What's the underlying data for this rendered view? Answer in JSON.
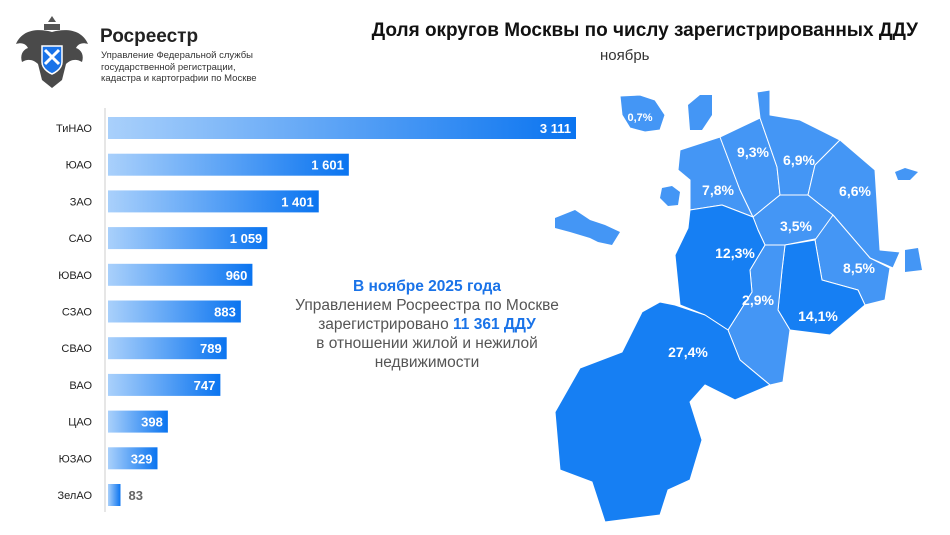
{
  "header": {
    "brand": "Росреестр",
    "brand_subtitle": "Управление Федеральной службы государственной регистрации, кадастра и картографии по Москве",
    "title": "Доля округов Москвы по числу зарегистрированных ДДУ",
    "subtitle": "ноябрь"
  },
  "info": {
    "line1": "В ноябре 2025 года",
    "line2": "Управлением Росреестра по Москве",
    "line3_prefix": "зарегистрировано ",
    "line3_value": "11 361 ДДУ",
    "line4": "в отношении жилой и нежилой",
    "line5": "недвижимости"
  },
  "colors": {
    "bar_start": "#a9d0fb",
    "bar_end": "#0a74f0",
    "map_light": "#4496f5",
    "map_dark": "#167ff3",
    "accent": "#1a73e8"
  },
  "chart_data": [
    {
      "type": "bar",
      "orientation": "horizontal",
      "categories": [
        "ТиНАО",
        "ЮАО",
        "ЗАО",
        "САО",
        "ЮВАО",
        "СЗАО",
        "СВАО",
        "ВАО",
        "ЦАО",
        "ЮЗАО",
        "ЗелАО"
      ],
      "values": [
        3111,
        1601,
        1401,
        1059,
        960,
        883,
        789,
        747,
        398,
        329,
        83
      ],
      "value_labels": [
        "3 111",
        "1 601",
        "1 401",
        "1 059",
        "960",
        "883",
        "789",
        "747",
        "398",
        "329",
        "83"
      ]
    },
    {
      "type": "choropleth",
      "regions": [
        {
          "name": "ЗелАО",
          "label": "0,7%",
          "shade": "light"
        },
        {
          "name": "СЗАО",
          "label": "7,8%",
          "shade": "light"
        },
        {
          "name": "САО",
          "label": "9,3%",
          "shade": "light"
        },
        {
          "name": "СВАО",
          "label": "6,9%",
          "shade": "light"
        },
        {
          "name": "ВАО",
          "label": "6,6%",
          "shade": "light"
        },
        {
          "name": "ЦАО",
          "label": "3,5%",
          "shade": "light"
        },
        {
          "name": "ЮВАО",
          "label": "8,5%",
          "shade": "light"
        },
        {
          "name": "ЮАО",
          "label": "14,1%",
          "shade": "dark"
        },
        {
          "name": "ЮЗАО",
          "label": "2,9%",
          "shade": "light"
        },
        {
          "name": "ЗАО",
          "label": "12,3%",
          "shade": "dark"
        },
        {
          "name": "ТиНАО",
          "label": "27,4%",
          "shade": "dark"
        }
      ]
    }
  ]
}
